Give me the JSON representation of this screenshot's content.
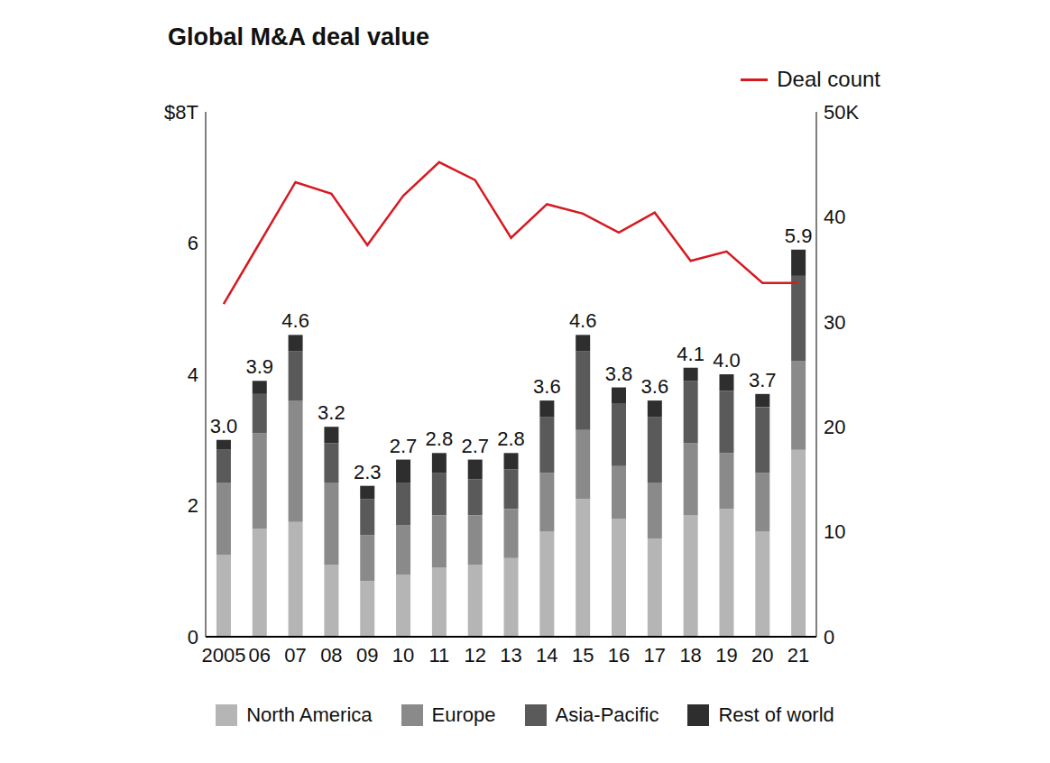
{
  "chart_data": {
    "type": "bar",
    "title": "Global M&A deal value",
    "stacked": true,
    "data_labels": true,
    "categories": [
      "2005",
      "06",
      "07",
      "08",
      "09",
      "10",
      "11",
      "12",
      "13",
      "14",
      "15",
      "16",
      "17",
      "18",
      "19",
      "20",
      "21"
    ],
    "series": [
      {
        "name": "North America",
        "color": "#b5b5b5",
        "values": [
          1.25,
          1.65,
          1.75,
          1.1,
          0.85,
          0.95,
          1.05,
          1.1,
          1.2,
          1.6,
          2.1,
          1.8,
          1.5,
          1.85,
          1.95,
          1.6,
          2.85
        ]
      },
      {
        "name": "Europe",
        "color": "#8a8a8a",
        "values": [
          1.1,
          1.45,
          1.85,
          1.25,
          0.7,
          0.75,
          0.8,
          0.75,
          0.75,
          0.9,
          1.05,
          0.8,
          0.85,
          1.1,
          0.85,
          0.9,
          1.35
        ]
      },
      {
        "name": "Asia-Pacific",
        "color": "#5a5a5a",
        "values": [
          0.5,
          0.6,
          0.75,
          0.6,
          0.55,
          0.65,
          0.65,
          0.55,
          0.6,
          0.85,
          1.2,
          0.95,
          1.0,
          0.95,
          0.95,
          1.0,
          1.3
        ]
      },
      {
        "name": "Rest of world",
        "color": "#2e2e2e",
        "values": [
          0.15,
          0.2,
          0.25,
          0.25,
          0.2,
          0.35,
          0.3,
          0.3,
          0.25,
          0.25,
          0.25,
          0.25,
          0.25,
          0.2,
          0.25,
          0.2,
          0.4
        ]
      },
      {
        "name": "Deal count",
        "type": "line",
        "axis": "y2",
        "color": "#d71920",
        "values": [
          31.7,
          37.5,
          43.3,
          42.2,
          37.3,
          42.0,
          45.2,
          43.5,
          38.0,
          41.2,
          40.3,
          38.5,
          40.4,
          35.8,
          36.7,
          33.7,
          33.7
        ]
      }
    ],
    "totals": [
      3.0,
      3.9,
      4.6,
      3.2,
      2.3,
      2.7,
      2.8,
      2.7,
      2.8,
      3.6,
      4.6,
      3.8,
      3.6,
      4.1,
      4.0,
      3.7,
      5.9
    ],
    "total_labels": [
      "3.0",
      "3.9",
      "4.6",
      "3.2",
      "2.3",
      "2.7",
      "2.8",
      "2.7",
      "2.8",
      "3.6",
      "4.6",
      "3.8",
      "3.6",
      "4.1",
      "4.0",
      "3.7",
      "5.9"
    ],
    "ylim": [
      0,
      8
    ],
    "yticks": [
      0,
      2,
      4,
      6,
      {
        "value": 8,
        "label": "$8T"
      }
    ],
    "y2lim": [
      0,
      50
    ],
    "y2ticks": [
      0,
      10,
      20,
      30,
      40,
      {
        "value": 50,
        "label": "50K"
      }
    ]
  }
}
